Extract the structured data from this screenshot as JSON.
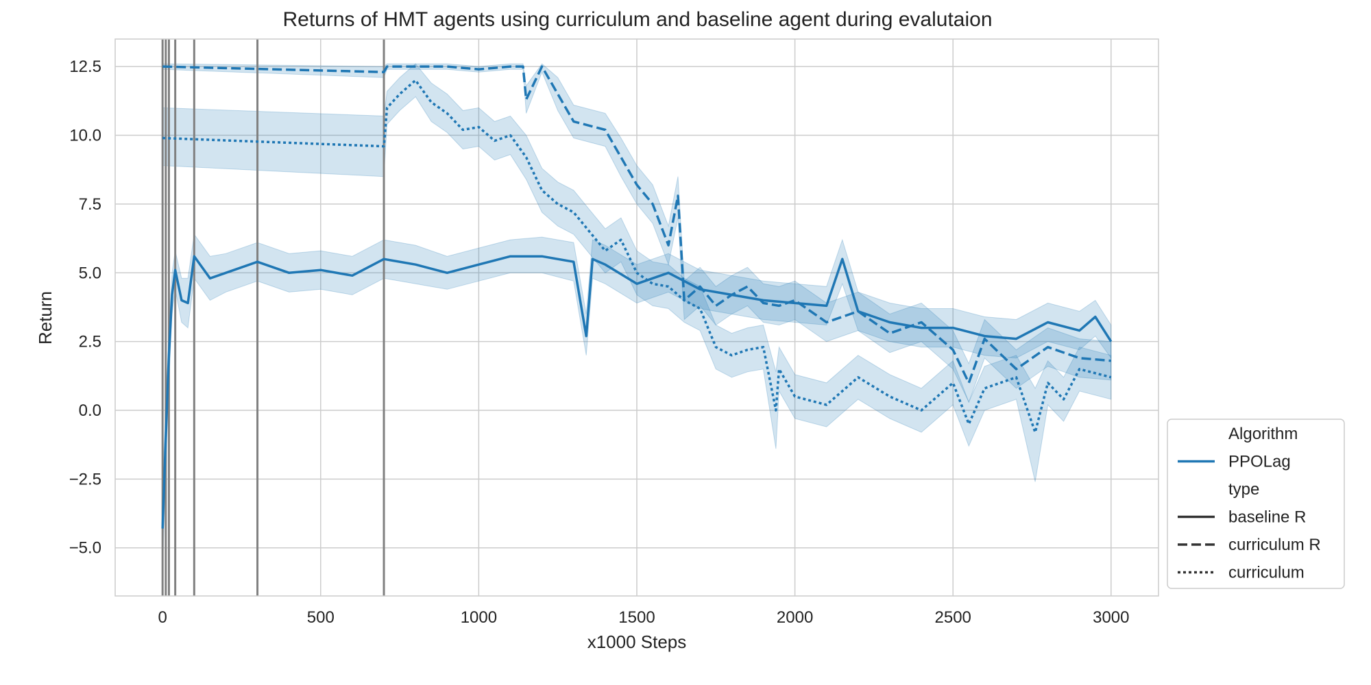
{
  "chart_data": {
    "type": "line",
    "title": "Returns of HMT agents using curriculum and baseline agent during evalutaion",
    "xlabel": "x1000 Steps",
    "ylabel": "Return",
    "xlim": [
      -150,
      3150
    ],
    "ylim": [
      -6.75,
      13.5
    ],
    "xticks": [
      0,
      500,
      1000,
      1500,
      2000,
      2500,
      3000
    ],
    "xtick_labels": [
      "0",
      "500",
      "1000",
      "1500",
      "2000",
      "2500",
      "3000"
    ],
    "yticks": [
      -5.0,
      -2.5,
      0.0,
      2.5,
      5.0,
      7.5,
      10.0,
      12.5
    ],
    "ytick_labels": [
      "−5.0",
      "−2.5",
      "0.0",
      "2.5",
      "5.0",
      "7.5",
      "10.0",
      "12.5"
    ],
    "grid": true,
    "vlines": [
      0,
      10,
      20,
      40,
      100,
      300,
      700
    ],
    "vline_color": "#808080",
    "series_color": "#1f77b4",
    "series": [
      {
        "name": "baseline R",
        "style": "solid",
        "x": [
          0,
          10,
          20,
          30,
          40,
          60,
          80,
          100,
          150,
          200,
          300,
          400,
          500,
          600,
          700,
          800,
          900,
          1000,
          1100,
          1200,
          1300,
          1340,
          1360,
          1400,
          1500,
          1600,
          1700,
          1800,
          1900,
          2000,
          2100,
          2150,
          2200,
          2300,
          2400,
          2500,
          2600,
          2700,
          2800,
          2900,
          2950,
          3000
        ],
        "y": [
          -4.3,
          -1.0,
          2.0,
          4.2,
          5.1,
          4.0,
          3.9,
          5.6,
          4.8,
          5.0,
          5.4,
          5.0,
          5.1,
          4.9,
          5.5,
          5.3,
          5.0,
          5.3,
          5.6,
          5.6,
          5.4,
          2.7,
          5.5,
          5.3,
          4.6,
          5.0,
          4.4,
          4.2,
          4.0,
          3.9,
          3.8,
          5.5,
          3.6,
          3.2,
          3.0,
          3.0,
          2.7,
          2.6,
          3.2,
          2.9,
          3.4,
          2.5
        ],
        "ci": [
          [
            -5.8,
            -2.5
          ],
          [
            -2.0,
            0.0
          ],
          [
            1.0,
            3.0
          ],
          [
            3.5,
            5.0
          ],
          [
            4.4,
            5.8
          ],
          [
            3.2,
            4.8
          ],
          [
            3.0,
            4.8
          ],
          [
            4.8,
            6.4
          ],
          [
            4.0,
            5.6
          ],
          [
            4.3,
            5.7
          ],
          [
            4.7,
            6.1
          ],
          [
            4.3,
            5.7
          ],
          [
            4.4,
            5.8
          ],
          [
            4.2,
            5.6
          ],
          [
            4.8,
            6.2
          ],
          [
            4.6,
            6.0
          ],
          [
            4.4,
            5.6
          ],
          [
            4.7,
            5.9
          ],
          [
            5.0,
            6.2
          ],
          [
            5.0,
            6.3
          ],
          [
            4.7,
            6.1
          ],
          [
            2.0,
            3.5
          ],
          [
            4.8,
            6.2
          ],
          [
            4.6,
            6.0
          ],
          [
            3.9,
            5.3
          ],
          [
            4.3,
            5.7
          ],
          [
            3.7,
            5.1
          ],
          [
            3.5,
            4.9
          ],
          [
            3.3,
            4.7
          ],
          [
            3.2,
            4.6
          ],
          [
            3.1,
            4.5
          ],
          [
            4.6,
            6.2
          ],
          [
            2.9,
            4.3
          ],
          [
            2.5,
            3.9
          ],
          [
            2.3,
            3.7
          ],
          [
            2.3,
            3.7
          ],
          [
            2.0,
            3.4
          ],
          [
            1.9,
            3.3
          ],
          [
            2.5,
            3.9
          ],
          [
            2.2,
            3.6
          ],
          [
            2.7,
            4.0
          ],
          [
            1.9,
            3.1
          ]
        ]
      },
      {
        "name": "curriculum R",
        "style": "dashed",
        "x": [
          0,
          700,
          710,
          800,
          900,
          1000,
          1100,
          1140,
          1150,
          1200,
          1250,
          1300,
          1400,
          1450,
          1500,
          1550,
          1600,
          1630,
          1650,
          1700,
          1750,
          1800,
          1850,
          1900,
          1950,
          2000,
          2100,
          2200,
          2300,
          2400,
          2500,
          2550,
          2600,
          2700,
          2800,
          2900,
          3000
        ],
        "y": [
          12.5,
          12.3,
          12.5,
          12.5,
          12.5,
          12.4,
          12.5,
          12.5,
          11.3,
          12.5,
          11.5,
          10.5,
          10.2,
          9.2,
          8.2,
          7.5,
          6.0,
          7.8,
          4.0,
          4.5,
          3.8,
          4.2,
          4.5,
          3.9,
          3.8,
          4.0,
          3.2,
          3.6,
          2.8,
          3.2,
          2.2,
          1.0,
          2.6,
          1.5,
          2.3,
          1.9,
          1.8
        ],
        "ci": [
          [
            12.4,
            12.6
          ],
          [
            12.1,
            12.5
          ],
          [
            12.4,
            12.6
          ],
          [
            12.4,
            12.6
          ],
          [
            12.4,
            12.6
          ],
          [
            12.3,
            12.5
          ],
          [
            12.4,
            12.6
          ],
          [
            12.4,
            12.6
          ],
          [
            10.8,
            11.8
          ],
          [
            12.3,
            12.6
          ],
          [
            10.9,
            12.1
          ],
          [
            9.9,
            11.1
          ],
          [
            9.6,
            10.8
          ],
          [
            8.5,
            9.9
          ],
          [
            7.5,
            8.9
          ],
          [
            6.8,
            8.2
          ],
          [
            5.3,
            6.7
          ],
          [
            7.0,
            8.5
          ],
          [
            3.3,
            4.7
          ],
          [
            3.8,
            5.2
          ],
          [
            3.1,
            4.5
          ],
          [
            3.5,
            4.9
          ],
          [
            3.8,
            5.2
          ],
          [
            3.2,
            4.6
          ],
          [
            3.1,
            4.5
          ],
          [
            3.3,
            4.7
          ],
          [
            2.5,
            3.9
          ],
          [
            2.9,
            4.3
          ],
          [
            2.1,
            3.5
          ],
          [
            2.5,
            3.9
          ],
          [
            1.5,
            2.9
          ],
          [
            0.3,
            1.7
          ],
          [
            1.9,
            3.3
          ],
          [
            0.8,
            2.2
          ],
          [
            1.6,
            3.0
          ],
          [
            1.2,
            2.6
          ],
          [
            1.1,
            2.5
          ]
        ]
      },
      {
        "name": "curriculum",
        "style": "dotted",
        "x": [
          0,
          700,
          710,
          750,
          800,
          850,
          900,
          950,
          1000,
          1050,
          1100,
          1150,
          1200,
          1250,
          1300,
          1350,
          1400,
          1450,
          1500,
          1550,
          1600,
          1650,
          1700,
          1750,
          1800,
          1850,
          1900,
          1940,
          1950,
          2000,
          2100,
          2200,
          2300,
          2400,
          2500,
          2550,
          2600,
          2700,
          2760,
          2800,
          2850,
          2900,
          3000
        ],
        "y": [
          9.9,
          9.6,
          11.0,
          11.5,
          12.0,
          11.2,
          10.8,
          10.2,
          10.3,
          9.8,
          10.0,
          9.2,
          8.0,
          7.5,
          7.2,
          6.5,
          5.8,
          6.2,
          5.0,
          4.6,
          4.5,
          4.0,
          3.7,
          2.3,
          2.0,
          2.2,
          2.3,
          0.0,
          1.5,
          0.5,
          0.2,
          1.2,
          0.5,
          0.0,
          1.0,
          -0.5,
          0.8,
          1.2,
          -0.8,
          1.0,
          0.4,
          1.5,
          1.2
        ],
        "ci": [
          [
            8.9,
            11.0
          ],
          [
            8.5,
            10.7
          ],
          [
            10.4,
            11.6
          ],
          [
            10.9,
            12.1
          ],
          [
            11.4,
            12.6
          ],
          [
            10.5,
            11.9
          ],
          [
            10.1,
            11.5
          ],
          [
            9.5,
            10.9
          ],
          [
            9.6,
            11.0
          ],
          [
            9.1,
            10.5
          ],
          [
            9.3,
            10.7
          ],
          [
            8.4,
            10.0
          ],
          [
            7.2,
            8.8
          ],
          [
            6.7,
            8.3
          ],
          [
            6.4,
            8.0
          ],
          [
            5.7,
            7.3
          ],
          [
            5.0,
            6.6
          ],
          [
            5.4,
            7.0
          ],
          [
            4.2,
            5.8
          ],
          [
            3.8,
            5.4
          ],
          [
            3.7,
            5.3
          ],
          [
            3.2,
            4.8
          ],
          [
            2.9,
            4.5
          ],
          [
            1.5,
            3.1
          ],
          [
            1.2,
            2.8
          ],
          [
            1.4,
            3.0
          ],
          [
            1.5,
            3.1
          ],
          [
            -1.4,
            1.4
          ],
          [
            0.7,
            2.3
          ],
          [
            -0.3,
            1.3
          ],
          [
            -0.6,
            1.0
          ],
          [
            0.4,
            2.0
          ],
          [
            -0.3,
            1.3
          ],
          [
            -0.8,
            0.8
          ],
          [
            0.2,
            1.8
          ],
          [
            -1.3,
            0.3
          ],
          [
            0.0,
            1.6
          ],
          [
            0.4,
            2.0
          ],
          [
            -2.6,
            0.8
          ],
          [
            0.2,
            1.8
          ],
          [
            -0.4,
            1.2
          ],
          [
            0.7,
            2.3
          ],
          [
            0.4,
            2.0
          ]
        ]
      }
    ],
    "legend": {
      "placement": "outside-lower-right",
      "entries": [
        {
          "label": "Algorithm",
          "kind": "header"
        },
        {
          "label": "PPOLag",
          "kind": "color"
        },
        {
          "label": "type",
          "kind": "header"
        },
        {
          "label": "baseline R",
          "kind": "solid"
        },
        {
          "label": "curriculum R",
          "kind": "dashed"
        },
        {
          "label": "curriculum",
          "kind": "dotted"
        }
      ]
    }
  }
}
